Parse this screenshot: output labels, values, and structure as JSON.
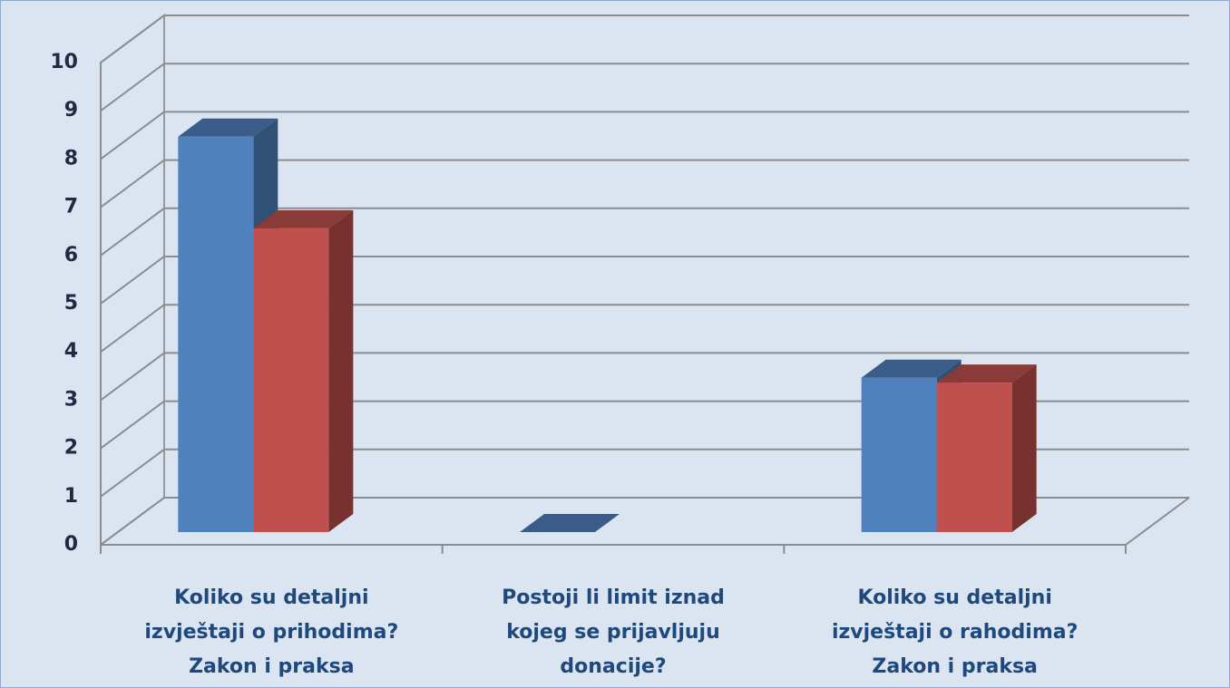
{
  "chart_data": {
    "type": "bar3d",
    "categories": [
      "Koliko su detaljni izvještaji o prihodima? Zakon i praksa",
      "Postoji li limit iznad kojeg se prijavljuju donacije?",
      "Koliko su detaljni izvještaji o rahodima? Zakon i praksa"
    ],
    "series": [
      {
        "color": "#4f81bd",
        "values": [
          8.2,
          0,
          3.2
        ]
      },
      {
        "color": "#c0504d",
        "values": [
          6.3,
          null,
          3.1
        ]
      }
    ],
    "ylim": [
      0,
      10
    ],
    "yticks": [
      0,
      1,
      2,
      3,
      4,
      5,
      6,
      7,
      8,
      9,
      10
    ],
    "grid": true
  }
}
